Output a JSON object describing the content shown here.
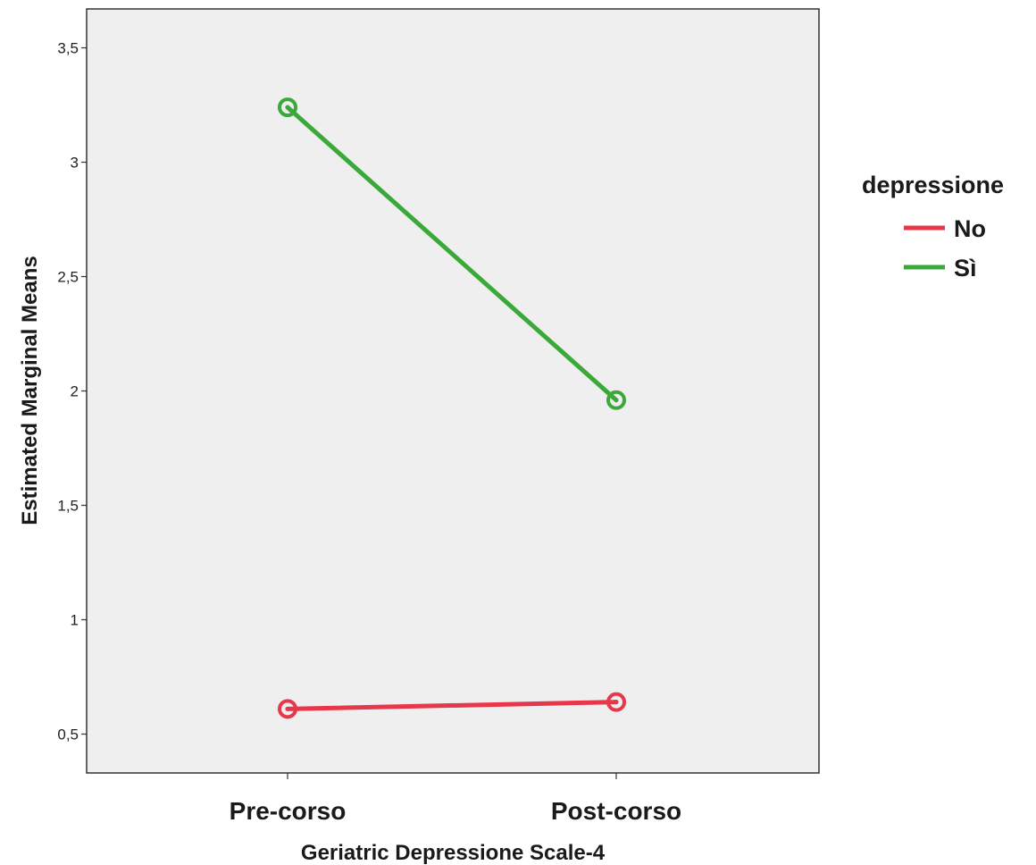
{
  "chart_data": {
    "type": "line",
    "xlabel": "Geriatric Depressione Scale-4",
    "ylabel": "Estimated Marginal Means",
    "categories": [
      "Pre-corso",
      "Post-corso"
    ],
    "ylim": [
      0.33,
      3.67
    ],
    "yticks": [
      0.5,
      1,
      1.5,
      2,
      2.5,
      3,
      3.5
    ],
    "ytick_labels": [
      "0,5",
      "1",
      "1,5",
      "2",
      "2,5",
      "3",
      "3,5"
    ],
    "grid": false,
    "legend": {
      "title": "depressione",
      "placement": "right"
    },
    "series": [
      {
        "name": "No",
        "color": "#e8374a",
        "values": [
          0.61,
          0.64
        ]
      },
      {
        "name": "Sì",
        "color": "#3aa93a",
        "values": [
          3.24,
          1.96
        ]
      }
    ],
    "plot_background": "#efefef"
  }
}
